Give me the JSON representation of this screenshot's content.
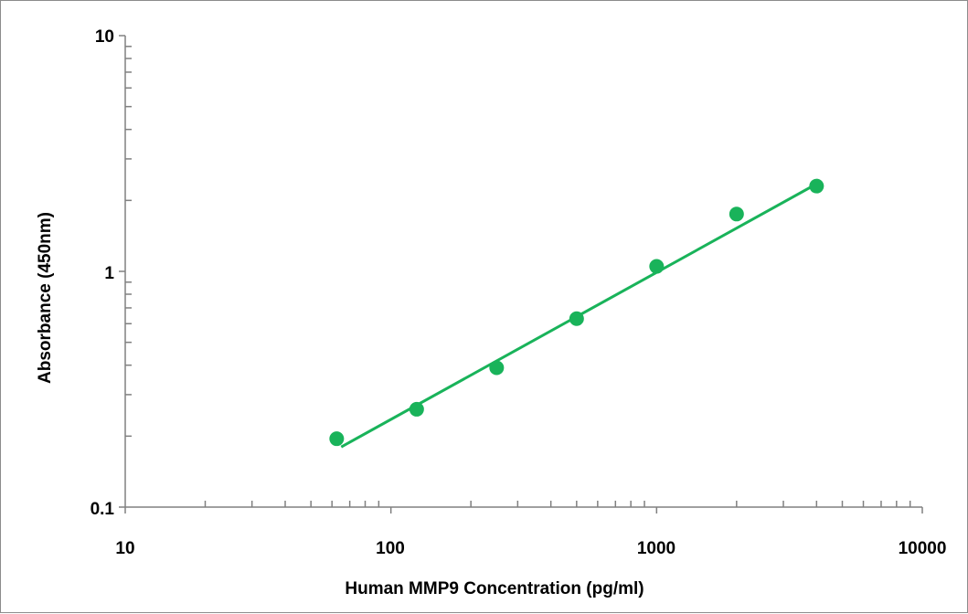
{
  "chart_data": {
    "type": "scatter",
    "title": "",
    "xlabel": "Human MMP9  Concentration (pg/ml)",
    "ylabel": "Absorbance (450nm)",
    "x_scale": "log",
    "y_scale": "log",
    "xlim": [
      10,
      10000
    ],
    "ylim": [
      0.1,
      10
    ],
    "x_tick_labels": [
      "10",
      "100",
      "1000",
      "10000"
    ],
    "y_tick_labels": [
      "0.1",
      "1",
      "10"
    ],
    "x_tick_values": [
      10,
      100,
      1000,
      10000
    ],
    "y_tick_values": [
      0.1,
      1,
      10
    ],
    "grid": false,
    "legend": "none",
    "colors": {
      "series": "#19b35a",
      "axis": "#808080",
      "frame": "#8c8c8c"
    },
    "series": [
      {
        "points": [
          {
            "x": 62.5,
            "y": 0.195
          },
          {
            "x": 125,
            "y": 0.26
          },
          {
            "x": 250,
            "y": 0.39
          },
          {
            "x": 500,
            "y": 0.63
          },
          {
            "x": 1000,
            "y": 1.05
          },
          {
            "x": 2000,
            "y": 1.75
          },
          {
            "x": 4000,
            "y": 2.3
          }
        ],
        "fit": {
          "type": "power",
          "from": {
            "x": 65,
            "y": 0.18
          },
          "to": {
            "x": 4000,
            "y": 2.35
          }
        }
      }
    ]
  }
}
